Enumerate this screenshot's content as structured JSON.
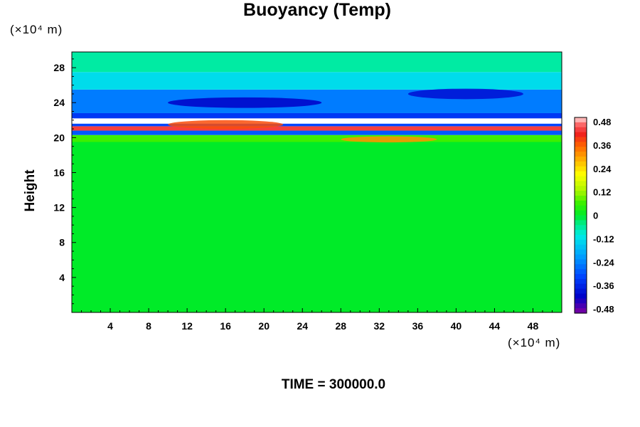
{
  "chart_data": {
    "type": "heatmap",
    "title": "Buoyancy (Temp)",
    "ylabel": "Height",
    "xlabel": "",
    "y_unit_label": "(×10⁴ m)",
    "x_unit_label": "(×10⁴ m)",
    "footer": "TIME = 300000.0",
    "xlim": [
      0,
      51
    ],
    "ylim": [
      0,
      29.8
    ],
    "x_ticks": [
      4,
      8,
      12,
      16,
      20,
      24,
      28,
      32,
      36,
      40,
      44,
      48
    ],
    "y_ticks": [
      4,
      8,
      12,
      16,
      20,
      24,
      28
    ],
    "colorbar": {
      "ticks": [
        "0.48",
        "0.36",
        "0.24",
        "0.12",
        "0",
        "-0.12",
        "-0.24",
        "-0.36",
        "-0.48"
      ],
      "range": [
        -0.48,
        0.48
      ]
    },
    "field_bands": [
      {
        "y_from": 0,
        "y_to": 19.5,
        "value": 0.0
      },
      {
        "y_from": 19.5,
        "y_to": 20.3,
        "value": 0.06
      },
      {
        "y_from": 20.3,
        "y_to": 20.8,
        "value": -0.28
      },
      {
        "y_from": 20.8,
        "y_to": 21.3,
        "value": 0.42
      },
      {
        "y_from": 21.3,
        "y_to": 21.6,
        "value": -0.3
      },
      {
        "y_from": 21.6,
        "y_to": 22.2,
        "value": 0.48
      },
      {
        "y_from": 22.2,
        "y_to": 22.8,
        "value": -0.32
      },
      {
        "y_from": 22.8,
        "y_to": 25.5,
        "value": -0.24
      },
      {
        "y_from": 25.5,
        "y_to": 27.5,
        "value": -0.12
      },
      {
        "y_from": 27.5,
        "y_to": 29.8,
        "value": -0.06
      }
    ],
    "features": [
      {
        "x_center": 16,
        "y_center": 21.5,
        "x_radius": 6,
        "y_radius": 0.5,
        "value": 0.36
      },
      {
        "x_center": 18,
        "y_center": 24.0,
        "x_radius": 8,
        "y_radius": 0.6,
        "value": -0.4
      },
      {
        "x_center": 33,
        "y_center": 19.8,
        "x_radius": 5,
        "y_radius": 0.35,
        "value": 0.3
      },
      {
        "x_center": 41,
        "y_center": 25.0,
        "x_radius": 6,
        "y_radius": 0.6,
        "value": -0.38
      }
    ]
  }
}
